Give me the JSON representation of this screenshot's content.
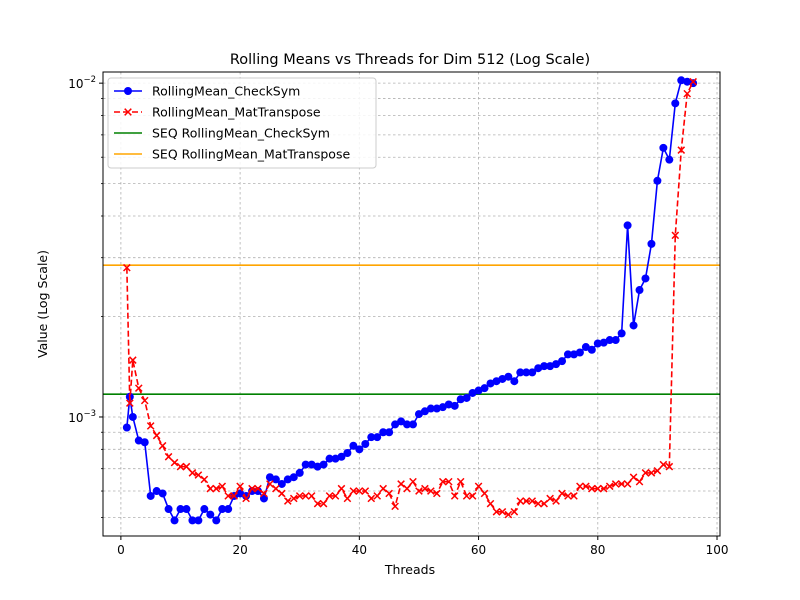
{
  "chart_data": {
    "type": "line",
    "title": "Rolling Means vs Threads for Dim 512 (Log Scale)",
    "xlabel": "Threads",
    "ylabel": "Value (Log Scale)",
    "xlim": [
      -3,
      100.5
    ],
    "ylim": [
      0.00044,
      0.0108
    ],
    "yscale": "log",
    "grid": true,
    "legend_position": "top-left",
    "x_ticks": [
      0,
      20,
      40,
      60,
      80,
      100
    ],
    "x_tick_labels": [
      "0",
      "20",
      "40",
      "60",
      "80",
      "100"
    ],
    "y_major_ticks": [
      0.001,
      0.01
    ],
    "y_tick_labels": [
      {
        "base": "10",
        "exp": "−3"
      },
      {
        "base": "10",
        "exp": "−2"
      }
    ],
    "y_minor_ticks": [
      0.0005,
      0.0006,
      0.0007,
      0.0008,
      0.0009,
      0.002,
      0.003,
      0.004,
      0.005,
      0.006,
      0.007,
      0.008,
      0.009
    ],
    "series": [
      {
        "name": "RollingMean_CheckSym",
        "color": "#0000ff",
        "line_style": "solid",
        "marker": "circle",
        "x": [
          1,
          1.5,
          2,
          3,
          4,
          5,
          6,
          7,
          8,
          9,
          10,
          11,
          12,
          13,
          14,
          15,
          16,
          17,
          18,
          19,
          20,
          21,
          22,
          23,
          24,
          25,
          26,
          27,
          28,
          29,
          30,
          31,
          32,
          33,
          34,
          35,
          36,
          37,
          38,
          39,
          40,
          41,
          42,
          43,
          44,
          45,
          46,
          47,
          48,
          49,
          50,
          51,
          52,
          53,
          54,
          55,
          56,
          57,
          58,
          59,
          60,
          61,
          62,
          63,
          64,
          65,
          66,
          67,
          68,
          69,
          70,
          71,
          72,
          73,
          74,
          75,
          76,
          77,
          78,
          79,
          80,
          81,
          82,
          83,
          84,
          85,
          86,
          87,
          88,
          89,
          90,
          91,
          92,
          93,
          94,
          95,
          96
        ],
        "values": [
          0.00093,
          0.00115,
          0.001,
          0.00085,
          0.00084,
          0.00058,
          0.0006,
          0.00059,
          0.00053,
          0.00049,
          0.00053,
          0.00053,
          0.00049,
          0.00049,
          0.00053,
          0.00051,
          0.00049,
          0.00053,
          0.00053,
          0.00058,
          0.00059,
          0.00058,
          0.0006,
          0.0006,
          0.00057,
          0.00066,
          0.00065,
          0.00063,
          0.00065,
          0.00066,
          0.00068,
          0.00072,
          0.00072,
          0.00071,
          0.00072,
          0.00075,
          0.00075,
          0.00076,
          0.00078,
          0.00082,
          0.0008,
          0.00083,
          0.00087,
          0.00087,
          0.0009,
          0.0009,
          0.00095,
          0.00097,
          0.00095,
          0.00095,
          0.00102,
          0.00104,
          0.00106,
          0.00106,
          0.00107,
          0.00109,
          0.00108,
          0.00113,
          0.00114,
          0.00118,
          0.0012,
          0.00122,
          0.00126,
          0.00128,
          0.0013,
          0.00132,
          0.00128,
          0.00136,
          0.00136,
          0.00136,
          0.0014,
          0.00142,
          0.00142,
          0.00144,
          0.00147,
          0.00154,
          0.00154,
          0.00156,
          0.00162,
          0.00159,
          0.00166,
          0.00167,
          0.0017,
          0.0017,
          0.00178,
          0.00375,
          0.00188,
          0.0024,
          0.0026,
          0.0033,
          0.0051,
          0.0064,
          0.0059,
          0.0087,
          0.0102,
          0.0101,
          0.01
        ],
        "values_note": ""
      },
      {
        "name": "RollingMean_MatTranspose",
        "color": "#ff0000",
        "line_style": "dashed",
        "marker": "x",
        "x": [
          1,
          1.5,
          2,
          3,
          4,
          5,
          6,
          7,
          8,
          9,
          10,
          11,
          12,
          13,
          14,
          15,
          16,
          17,
          18,
          19,
          20,
          21,
          22,
          23,
          24,
          25,
          26,
          27,
          28,
          29,
          30,
          31,
          32,
          33,
          34,
          35,
          36,
          37,
          38,
          39,
          40,
          41,
          42,
          43,
          44,
          45,
          46,
          47,
          48,
          49,
          50,
          51,
          52,
          53,
          54,
          55,
          56,
          57,
          58,
          59,
          60,
          61,
          62,
          63,
          64,
          65,
          66,
          67,
          68,
          69,
          70,
          71,
          72,
          73,
          74,
          75,
          76,
          77,
          78,
          79,
          80,
          81,
          82,
          83,
          84,
          85,
          86,
          87,
          88,
          89,
          90,
          91,
          92,
          93,
          94,
          95,
          96
        ],
        "values": [
          0.0028,
          0.0011,
          0.00148,
          0.00122,
          0.00112,
          0.00094,
          0.00088,
          0.00082,
          0.00076,
          0.00073,
          0.00071,
          0.00071,
          0.00068,
          0.00067,
          0.00065,
          0.00061,
          0.00061,
          0.00062,
          0.00058,
          0.00058,
          0.00062,
          0.00057,
          0.00061,
          0.00061,
          0.00059,
          0.00063,
          0.00061,
          0.00059,
          0.00056,
          0.00057,
          0.00058,
          0.00058,
          0.00058,
          0.00055,
          0.00055,
          0.00058,
          0.00058,
          0.00061,
          0.00057,
          0.0006,
          0.0006,
          0.0006,
          0.00057,
          0.00058,
          0.00061,
          0.00059,
          0.00054,
          0.00063,
          0.00061,
          0.00064,
          0.0006,
          0.00061,
          0.0006,
          0.00059,
          0.00064,
          0.00064,
          0.00058,
          0.00064,
          0.00058,
          0.00058,
          0.00062,
          0.00059,
          0.00055,
          0.00052,
          0.00052,
          0.00051,
          0.00052,
          0.00056,
          0.00056,
          0.00056,
          0.00055,
          0.00055,
          0.00057,
          0.00056,
          0.00059,
          0.00058,
          0.00058,
          0.00062,
          0.00062,
          0.00061,
          0.00061,
          0.00061,
          0.00062,
          0.00063,
          0.00063,
          0.00063,
          0.00066,
          0.00064,
          0.00068,
          0.00068,
          0.00069,
          0.00072,
          0.00071,
          0.0035,
          0.0063,
          0.0093,
          0.0101
        ]
      },
      {
        "name": "SEQ RollingMean_CheckSym",
        "color": "#008000",
        "line_style": "solid",
        "marker": "none",
        "hline": 0.00117
      },
      {
        "name": "SEQ RollingMean_MatTranspose",
        "color": "#ffa500",
        "line_style": "solid",
        "marker": "none",
        "hline": 0.00285
      }
    ]
  }
}
